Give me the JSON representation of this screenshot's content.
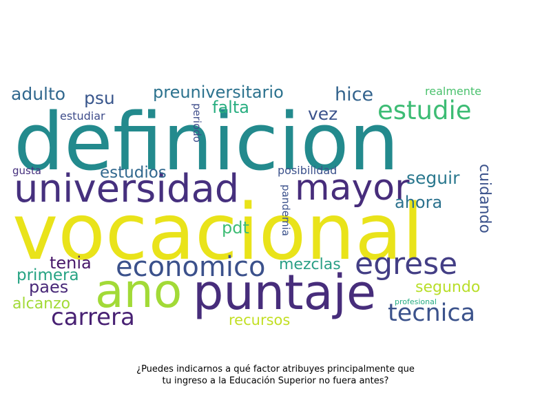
{
  "caption": {
    "line1": "¿Puedes indicarnos a qué factor atribuyes principalmente que",
    "line2": "tu ingreso a la Educación Superior no fuera antes?"
  },
  "words": [
    {
      "text": "definicion",
      "color": "#238a8d"
    },
    {
      "text": "vocacional",
      "color": "#e9e31a"
    },
    {
      "text": "universidad",
      "color": "#46307e"
    },
    {
      "text": "mayor",
      "color": "#472d7b"
    },
    {
      "text": "puntaje",
      "color": "#472d7b"
    },
    {
      "text": "ano",
      "color": "#a2da37"
    },
    {
      "text": "economico",
      "color": "#3b518b"
    },
    {
      "text": "egrese",
      "color": "#433e85"
    },
    {
      "text": "estudie",
      "color": "#3dbc74"
    },
    {
      "text": "tecnica",
      "color": "#3b528b"
    },
    {
      "text": "carrera",
      "color": "#482173"
    },
    {
      "text": "preuniversitario",
      "color": "#2c728e"
    },
    {
      "text": "hice",
      "color": "#33638d"
    },
    {
      "text": "adulto",
      "color": "#31688e"
    },
    {
      "text": "psu",
      "color": "#39568c"
    },
    {
      "text": "falta",
      "color": "#28ae80"
    },
    {
      "text": "vez",
      "color": "#3b528b"
    },
    {
      "text": "estudios",
      "color": "#31688e"
    },
    {
      "text": "seguir",
      "color": "#2a788e"
    },
    {
      "text": "ahora",
      "color": "#2c728e"
    },
    {
      "text": "cuidando",
      "color": "#3b528b"
    },
    {
      "text": "pdt",
      "color": "#3dbc74"
    },
    {
      "text": "tenia",
      "color": "#48186a"
    },
    {
      "text": "primera",
      "color": "#26a383"
    },
    {
      "text": "paes",
      "color": "#482878"
    },
    {
      "text": "alcanzo",
      "color": "#a2da37"
    },
    {
      "text": "mezclas",
      "color": "#2a9f86"
    },
    {
      "text": "segundo",
      "color": "#b8de29"
    },
    {
      "text": "recursos",
      "color": "#c2df23"
    },
    {
      "text": "realmente",
      "color": "#4ac16d"
    },
    {
      "text": "estudiar",
      "color": "#3e4c8a"
    },
    {
      "text": "periodo",
      "color": "#3e4c8a"
    },
    {
      "text": "gusta",
      "color": "#46307e"
    },
    {
      "text": "posibilidad",
      "color": "#3b518b"
    },
    {
      "text": "pandemia",
      "color": "#3b518b"
    },
    {
      "text": "profesional",
      "color": "#25ab82"
    }
  ]
}
